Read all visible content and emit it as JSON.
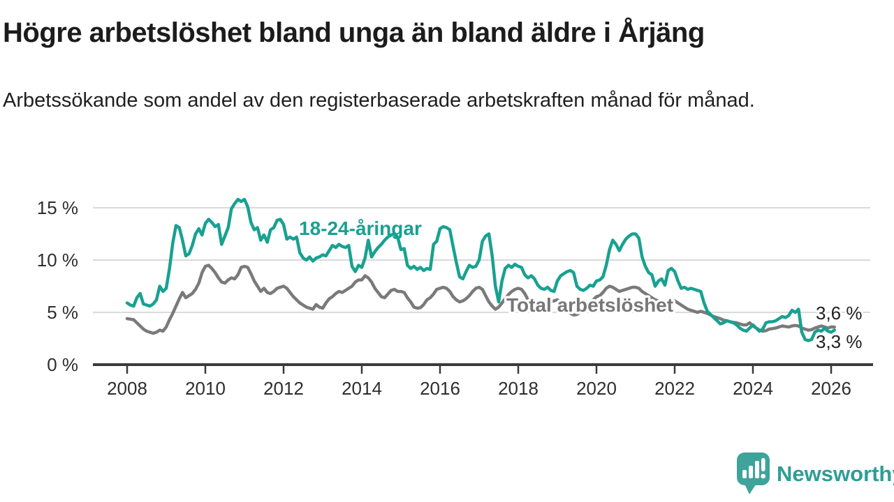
{
  "header": {
    "title": "Högre arbetslöshet bland unga än bland äldre i Årjäng",
    "subtitle": "Arbetssökande som andel av den registerbaserade arbetskraften månad för månad."
  },
  "branding": {
    "logo_icon": "speech-bubble-bar-chart",
    "logo_mark_color": "#3ea39b",
    "logo_text": "Newsworthy",
    "logo_text_color": "#2d9e96"
  },
  "chart_data": {
    "type": "line",
    "frequency": "monthly",
    "x_start": "2008-01",
    "x_end": "2026-02",
    "ylim": [
      0,
      16.5
    ],
    "grid": "horizontal",
    "grid_color": "#d9d9d9",
    "axis_color": "#3a3a3a",
    "x_tick_labels": [
      "2008",
      "2010",
      "2012",
      "2014",
      "2016",
      "2018",
      "2020",
      "2022",
      "2024",
      "2026"
    ],
    "y_ticks": [
      {
        "value": 0,
        "label": "0 %"
      },
      {
        "value": 5,
        "label": "5 %"
      },
      {
        "value": 10,
        "label": "10 %"
      },
      {
        "value": 15,
        "label": "15 %"
      }
    ],
    "series": [
      {
        "name": "Total arbetslöshet",
        "color": "#7a7a7a",
        "values": [
          4.4,
          4.35,
          4.3,
          4.0,
          3.7,
          3.4,
          3.2,
          3.1,
          3.0,
          3.1,
          3.3,
          3.2,
          3.6,
          4.3,
          4.9,
          5.6,
          6.3,
          6.9,
          6.4,
          6.6,
          6.8,
          7.2,
          7.8,
          8.8,
          9.4,
          9.5,
          9.2,
          8.8,
          8.3,
          7.9,
          7.8,
          8.1,
          8.3,
          8.2,
          8.6,
          9.3,
          9.4,
          9.3,
          8.7,
          8.0,
          7.5,
          7.0,
          7.3,
          6.9,
          6.8,
          7.0,
          7.3,
          7.4,
          7.5,
          7.3,
          6.9,
          6.5,
          6.2,
          5.9,
          5.7,
          5.5,
          5.4,
          5.3,
          5.75,
          5.5,
          5.4,
          5.9,
          6.3,
          6.5,
          6.8,
          7.0,
          6.9,
          7.1,
          7.3,
          7.5,
          7.9,
          8.1,
          8.1,
          8.5,
          8.3,
          7.9,
          7.3,
          6.9,
          6.5,
          6.4,
          6.75,
          7.1,
          7.2,
          7.0,
          7.0,
          6.9,
          6.4,
          6.0,
          5.5,
          5.4,
          5.45,
          5.75,
          6.2,
          6.4,
          6.75,
          7.2,
          7.3,
          7.4,
          7.3,
          7.0,
          6.5,
          6.2,
          6.0,
          6.1,
          6.3,
          6.6,
          7.0,
          7.3,
          7.4,
          7.2,
          6.6,
          6.0,
          5.6,
          5.3,
          5.5,
          5.9,
          6.3,
          6.7,
          7.0,
          7.2,
          7.3,
          7.2,
          6.8,
          6.2,
          5.6,
          5.1,
          5.0,
          5.2,
          5.5,
          5.8,
          6.0,
          6.1,
          6.2,
          6.0,
          5.6,
          5.2,
          4.9,
          4.75,
          4.8,
          5.0,
          5.3,
          5.6,
          5.9,
          6.2,
          6.5,
          6.6,
          6.9,
          7.3,
          7.5,
          7.4,
          7.2,
          7.0,
          7.1,
          7.2,
          7.3,
          7.4,
          7.4,
          7.3,
          7.0,
          6.8,
          6.6,
          6.4,
          6.2,
          6.1,
          6.0,
          5.9,
          6.0,
          6.2,
          6.1,
          5.9,
          5.7,
          5.5,
          5.3,
          5.2,
          5.1,
          5.0,
          5.1,
          5.0,
          4.9,
          4.75,
          4.6,
          4.5,
          4.4,
          4.25,
          4.2,
          4.1,
          4.05,
          4.0,
          3.9,
          3.8,
          3.8,
          4.0,
          3.7,
          3.5,
          3.3,
          3.2,
          3.25,
          3.4,
          3.45,
          3.5,
          3.6,
          3.7,
          3.65,
          3.6,
          3.7,
          3.75,
          3.7,
          3.5,
          3.4,
          3.3,
          3.35,
          3.5,
          3.6,
          3.7,
          3.6,
          3.5,
          3.6,
          3.6
        ]
      },
      {
        "name": "18-24-åringar",
        "color": "#18a191",
        "values": [
          5.9,
          5.7,
          5.6,
          6.4,
          6.8,
          5.8,
          5.7,
          5.6,
          5.8,
          6.2,
          7.5,
          7.0,
          7.3,
          9.2,
          11.6,
          13.3,
          13.1,
          11.9,
          10.4,
          10.6,
          11.4,
          12.5,
          13.0,
          12.4,
          13.5,
          13.9,
          13.6,
          13.2,
          13.4,
          11.5,
          12.3,
          13.1,
          14.9,
          15.4,
          15.8,
          15.6,
          15.8,
          15.1,
          13.6,
          12.9,
          13.1,
          11.9,
          12.4,
          11.7,
          12.9,
          13.1,
          13.8,
          13.9,
          13.4,
          12.0,
          12.2,
          12.0,
          12.2,
          10.7,
          10.2,
          10.0,
          10.3,
          9.9,
          10.2,
          10.3,
          10.5,
          10.4,
          10.9,
          11.4,
          11.2,
          11.5,
          11.3,
          11.2,
          11.4,
          9.4,
          8.9,
          9.5,
          9.3,
          10.2,
          11.9,
          10.3,
          10.8,
          11.2,
          11.5,
          11.9,
          12.2,
          12.4,
          12.5,
          12.2,
          11.0,
          11.1,
          9.5,
          9.2,
          9.4,
          9.1,
          9.3,
          9.0,
          9.2,
          9.1,
          11.5,
          11.8,
          13.0,
          13.2,
          13.1,
          12.9,
          11.3,
          9.8,
          8.4,
          8.2,
          8.9,
          9.5,
          9.3,
          9.4,
          10.0,
          11.8,
          12.3,
          12.5,
          10.4,
          7.5,
          6.0,
          8.0,
          9.2,
          9.5,
          9.3,
          9.6,
          9.4,
          9.3,
          8.6,
          8.3,
          8.5,
          8.2,
          7.6,
          7.3,
          7.2,
          7.4,
          7.1,
          7.0,
          8.0,
          8.5,
          8.7,
          8.9,
          9.0,
          8.8,
          7.5,
          7.2,
          7.1,
          7.3,
          7.6,
          7.5,
          8.0,
          8.1,
          8.4,
          9.5,
          11.0,
          11.9,
          11.5,
          10.9,
          11.5,
          12.0,
          12.3,
          12.5,
          12.5,
          12.1,
          10.3,
          9.4,
          8.8,
          8.6,
          7.5,
          8.0,
          8.2,
          7.6,
          9.0,
          9.2,
          8.9,
          8.0,
          7.3,
          7.4,
          7.2,
          7.3,
          7.2,
          7.1,
          7.0,
          5.9,
          5.1,
          4.8,
          4.5,
          4.2,
          3.9,
          4.0,
          4.2,
          4.1,
          4.0,
          3.8,
          3.5,
          3.3,
          3.2,
          3.5,
          3.8,
          3.5,
          3.2,
          3.4,
          4.0,
          4.1,
          4.1,
          4.2,
          4.4,
          4.6,
          4.5,
          4.7,
          5.2,
          5.0,
          5.3,
          3.1,
          2.4,
          2.3,
          2.4,
          3.1,
          3.3,
          3.2,
          3.5,
          3.2,
          3.1,
          3.3
        ]
      }
    ],
    "series_labels": [
      {
        "text": "18-24-åringar",
        "series": "18-24-åringar"
      },
      {
        "text": "Total arbetslöshet",
        "series": "Total arbetslöshet"
      }
    ],
    "end_labels": [
      {
        "text": "3,6 %",
        "series": "Total arbetslöshet",
        "value": 3.6
      },
      {
        "text": "3,3 %",
        "series": "18-24-åringar",
        "value": 3.3
      }
    ]
  }
}
